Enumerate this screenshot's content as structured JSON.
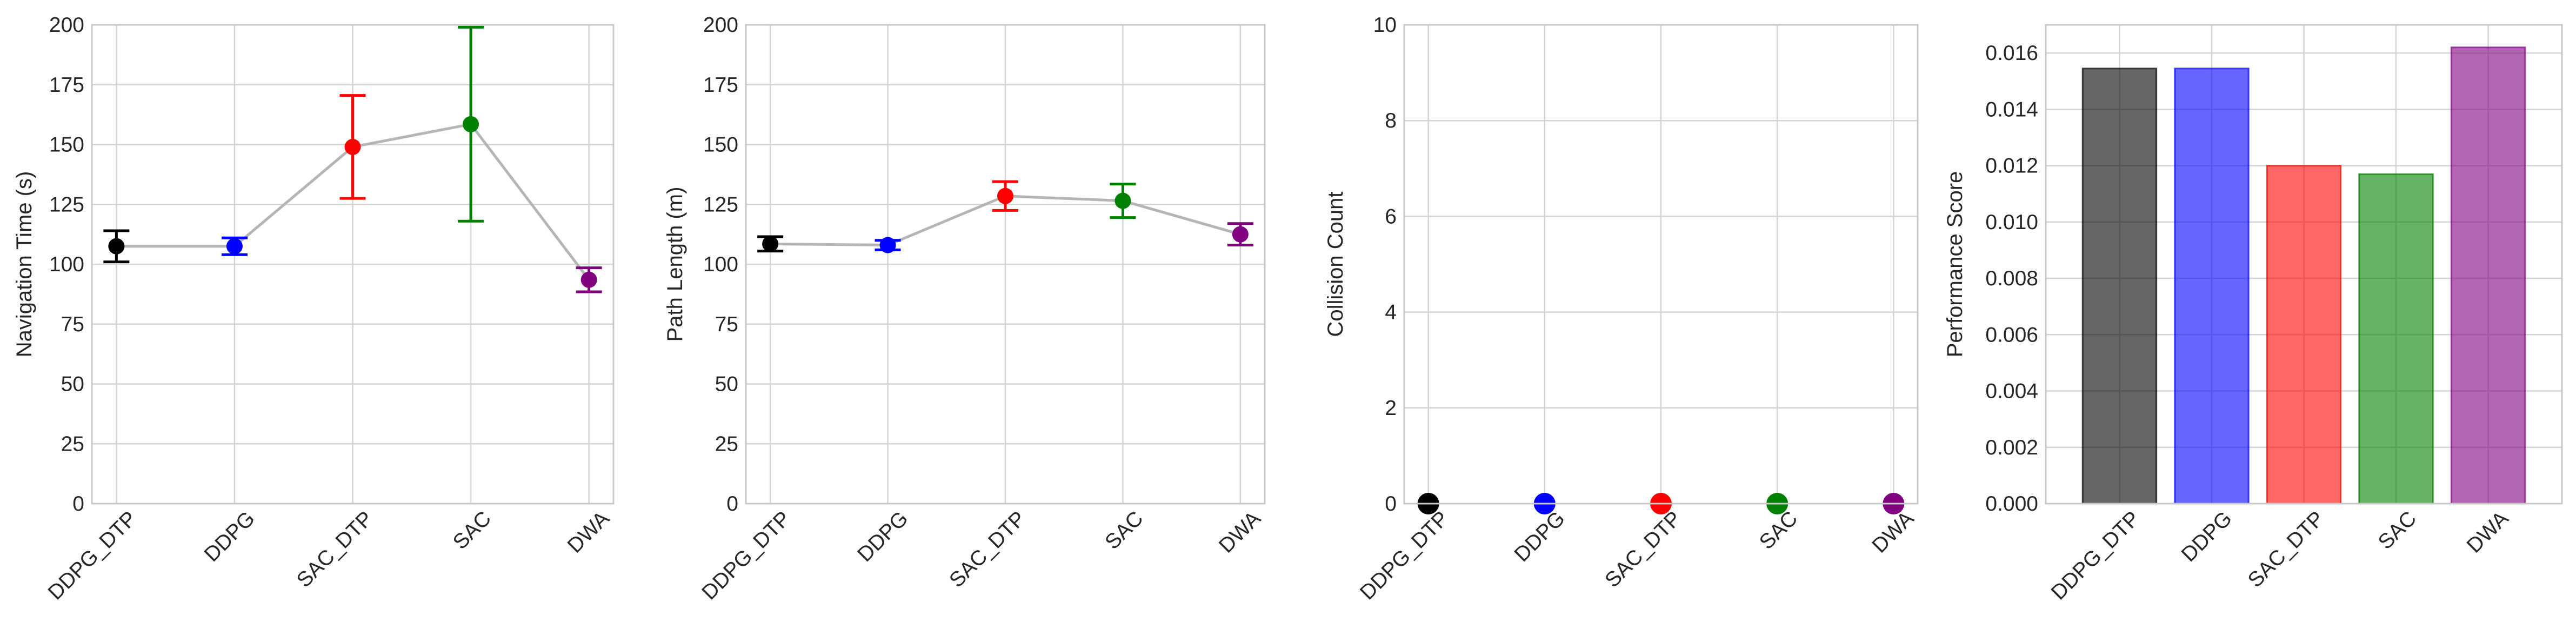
{
  "chart_data": [
    {
      "type": "scatter",
      "title": "",
      "xlabel": "",
      "ylabel": "Navigation Time (s)",
      "categories": [
        "DDPG_DTP",
        "DDPG",
        "SAC_DTP",
        "SAC",
        "DWA"
      ],
      "values": [
        107.5,
        107.5,
        149.0,
        158.5,
        93.5
      ],
      "error": [
        6.5,
        3.5,
        21.5,
        40.5,
        5.0
      ],
      "colors": [
        "#000000",
        "#0000ff",
        "#ff0000",
        "#008000",
        "#800080"
      ],
      "ylim": [
        0,
        200
      ],
      "yticks": [
        0,
        25,
        50,
        75,
        100,
        125,
        150,
        175,
        200
      ],
      "connect": true,
      "grid": true
    },
    {
      "type": "scatter",
      "title": "",
      "xlabel": "",
      "ylabel": "Path Length (m)",
      "categories": [
        "DDPG_DTP",
        "DDPG",
        "SAC_DTP",
        "SAC",
        "DWA"
      ],
      "values": [
        108.5,
        108.0,
        128.5,
        126.5,
        112.5
      ],
      "error": [
        3.0,
        2.0,
        6.0,
        7.0,
        4.5
      ],
      "colors": [
        "#000000",
        "#0000ff",
        "#ff0000",
        "#008000",
        "#800080"
      ],
      "ylim": [
        0,
        200
      ],
      "yticks": [
        0,
        25,
        50,
        75,
        100,
        125,
        150,
        175,
        200
      ],
      "connect": true,
      "grid": true
    },
    {
      "type": "scatter",
      "title": "",
      "xlabel": "",
      "ylabel": "Collision Count",
      "categories": [
        "DDPG_DTP",
        "DDPG",
        "SAC_DTP",
        "SAC",
        "DWA"
      ],
      "values": [
        0,
        0,
        0,
        0,
        0
      ],
      "error": [
        0,
        0,
        0,
        0,
        0
      ],
      "colors": [
        "#000000",
        "#0000ff",
        "#ff0000",
        "#008000",
        "#800080"
      ],
      "ylim": [
        0,
        10
      ],
      "yticks": [
        0,
        2,
        4,
        6,
        8,
        10
      ],
      "connect": false,
      "grid": true
    },
    {
      "type": "bar",
      "title": "",
      "xlabel": "",
      "ylabel": "Performance Score",
      "categories": [
        "DDPG_DTP",
        "DDPG",
        "SAC_DTP",
        "SAC",
        "DWA"
      ],
      "values": [
        0.01545,
        0.01545,
        0.012,
        0.0117,
        0.0162
      ],
      "colors": [
        "#000000",
        "#0000ff",
        "#ff0000",
        "#008000",
        "#800080"
      ],
      "ylim": [
        0,
        0.017
      ],
      "yticks": [
        "0.000",
        "0.002",
        "0.004",
        "0.006",
        "0.008",
        "0.010",
        "0.012",
        "0.014",
        "0.016"
      ],
      "grid": true
    }
  ]
}
